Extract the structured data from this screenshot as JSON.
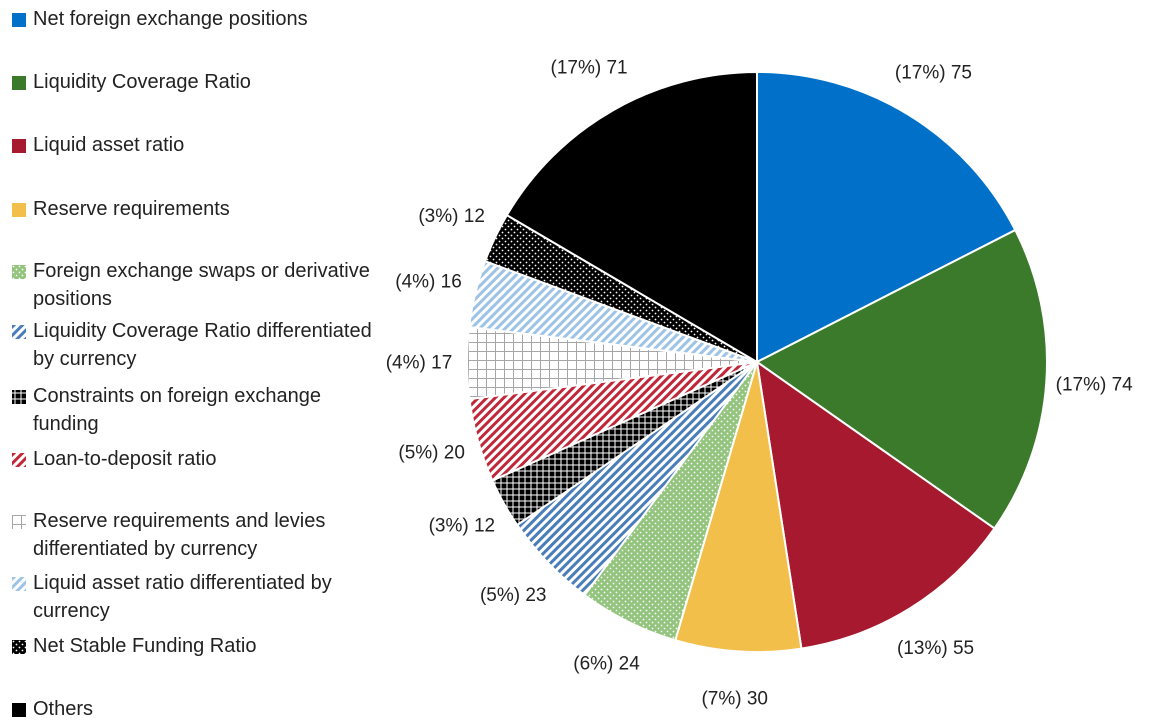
{
  "chart_data": {
    "type": "pie",
    "categories": [
      "Net foreign exchange positions",
      "Liquidity Coverage Ratio",
      "Liquid asset ratio",
      "Reserve requirements",
      "Foreign exchange swaps or derivative positions",
      "Liquidity Coverage Ratio differentiated by currency",
      "Constraints on foreign exchange funding",
      "Loan-to-deposit ratio",
      "Reserve requirements and levies differentiated by currency",
      "Liquid asset ratio differentiated by currency",
      "Net Stable Funding Ratio",
      "Others"
    ],
    "values": [
      75,
      74,
      55,
      30,
      24,
      23,
      12,
      20,
      17,
      16,
      12,
      71
    ],
    "value_labels": [
      "(17%) 75",
      "(17%) 74",
      "(13%) 55",
      "(7%) 30",
      "(6%) 24",
      "(5%) 23",
      "(3%) 12",
      "(5%) 20",
      "(4%) 17",
      "(4%) 16",
      "(3%) 12",
      "(17%) 71"
    ],
    "colors": [
      "#0070c8",
      "#3a7a2a",
      "#a6192e",
      "#f2c04a",
      "#93c47d",
      "#4a7eb8",
      "#000000",
      "#c0283a",
      "#a6a6a6",
      "#9dc3e6",
      "#000000",
      "#000000"
    ],
    "patterns": [
      "solid",
      "solid",
      "solid",
      "solid",
      "dots",
      "stripes",
      "grid-dark",
      "stripes",
      "grid-light",
      "stripes",
      "dots",
      "solid"
    ]
  }
}
